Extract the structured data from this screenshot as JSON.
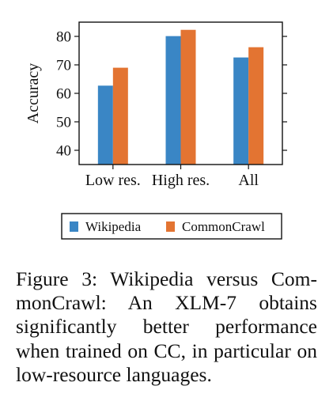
{
  "chart_data": {
    "type": "bar",
    "categories": [
      "Low res.",
      "High res.",
      "All"
    ],
    "series": [
      {
        "name": "Wikipedia",
        "values": [
          62.7,
          80.1,
          72.6
        ],
        "color": "#3a86c5"
      },
      {
        "name": "CommonCrawl",
        "values": [
          69.0,
          82.3,
          76.2
        ],
        "color": "#e37432"
      }
    ],
    "ylabel": "Accuracy",
    "xlabel": "",
    "ylim": [
      35,
      85
    ],
    "yticks": [
      40,
      50,
      60,
      70,
      80
    ],
    "grid": false,
    "legend_position": "bottom"
  },
  "caption": {
    "text": "Figure 3: Wikipedia versus Com­monCrawl: An XLM-7 obtains significantly better performance when trained on CC, in particular on low-resource languages."
  }
}
